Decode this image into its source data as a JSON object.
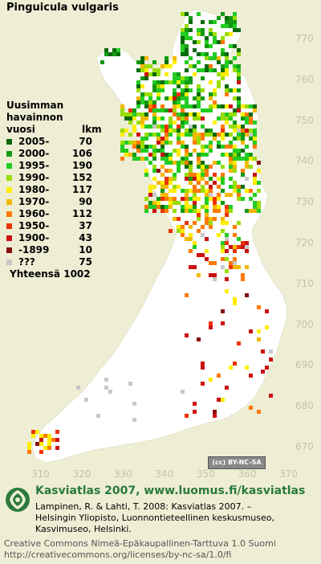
{
  "title": "Pinguicula vulgaris",
  "y_axis_labels": [
    "770",
    "760",
    "750",
    "740",
    "730",
    "720",
    "710",
    "700",
    "690",
    "680",
    "670"
  ],
  "x_axis_labels": [
    "310",
    "320",
    "330",
    "340",
    "350",
    "360",
    "370"
  ],
  "legend": {
    "header_line1": "Uusimman",
    "header_line2": "havainnon",
    "header_line3": "vuosi",
    "header_count": "lkm",
    "rows": [
      {
        "label": "2005-",
        "count": "70",
        "color": "#0a6a0a"
      },
      {
        "label": "2000-",
        "count": "106",
        "color": "#139a13"
      },
      {
        "label": "1995-",
        "count": "190",
        "color": "#22cc22"
      },
      {
        "label": "1990-",
        "count": "152",
        "color": "#99dd00"
      },
      {
        "label": "1980-",
        "count": "117",
        "color": "#ffee00"
      },
      {
        "label": "1970-",
        "count": "90",
        "color": "#f3b800"
      },
      {
        "label": "1960-",
        "count": "112",
        "color": "#ff7a00"
      },
      {
        "label": "1950-",
        "count": "37",
        "color": "#ee3300"
      },
      {
        "label": "1900-",
        "count": "43",
        "color": "#cc1111"
      },
      {
        "label": "-1899",
        "count": "10",
        "color": "#881010"
      },
      {
        "label": "???",
        "count": "75",
        "color": "#c8c8c8"
      }
    ],
    "total_label": "Yhteensä",
    "total_value": "1002"
  },
  "license_badge": "(cc) BY-NC-SA",
  "footer": {
    "brand_line": "Kasviatlas 2007, www.luomus.fi/kasviatlas",
    "citation_line1": "Lampinen, R. & Lahti, T. 2008: Kasviatlas 2007. –",
    "citation_line2": "Helsingin Yliopisto, Luonnontieteellinen keskusmuseo,",
    "citation_line3": "Kasvimuseo, Helsinki.",
    "license_line1": "Creative Commons Nimeä-Epäkaupallinen-Tarttuva 1.0 Suomi",
    "license_line2": "http://creativecommons.org/licenses/by-nc-sa/1.0/fi"
  },
  "colors": {
    "background": "#eeeed5",
    "land": "#ffffff",
    "grid_label": "#c4c4a4",
    "brand": "#2a7a3b"
  }
}
